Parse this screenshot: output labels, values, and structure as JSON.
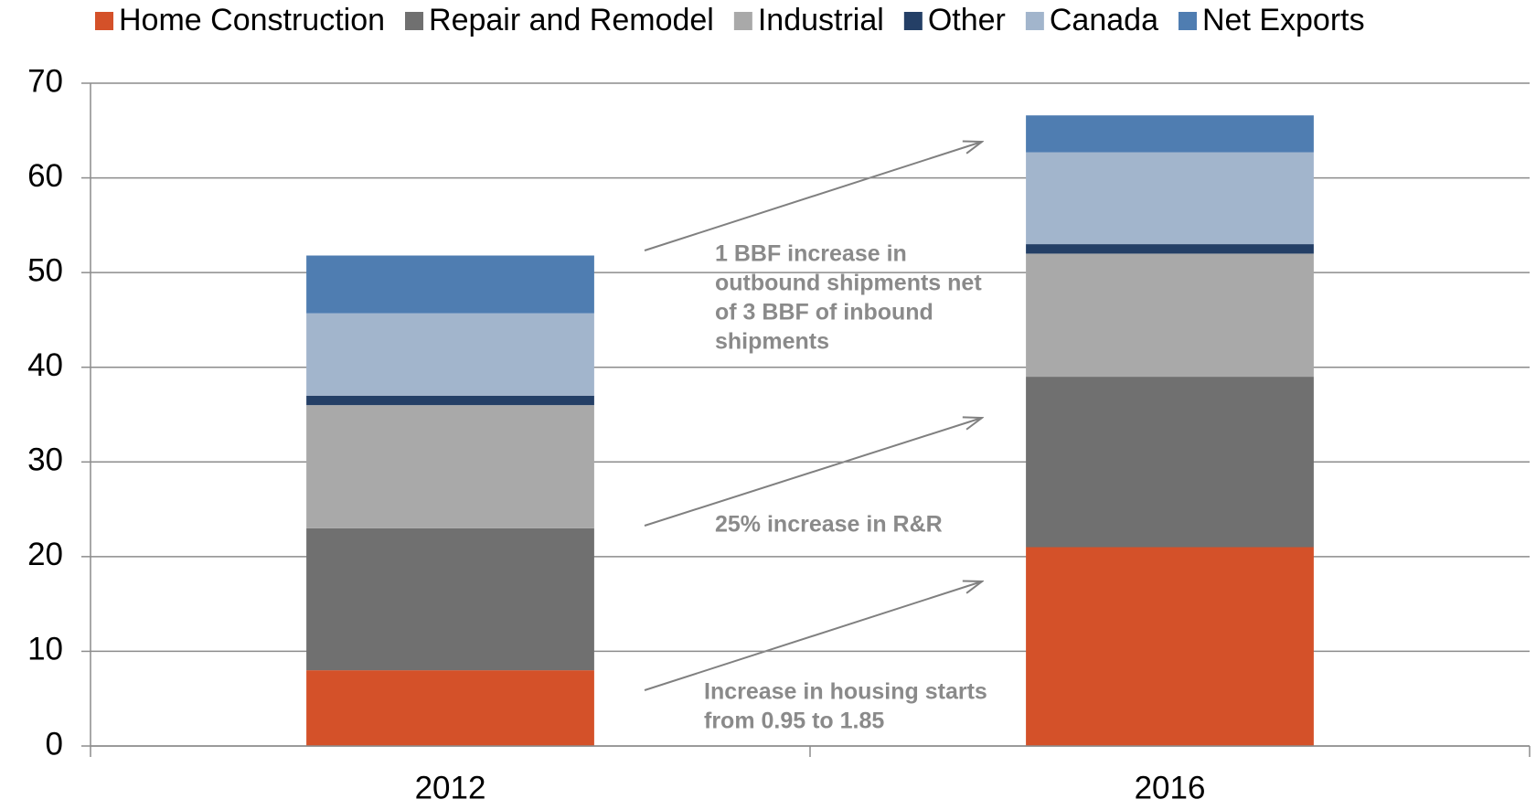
{
  "chart_data": {
    "type": "stacked_bar",
    "categories": [
      "2012",
      "2016"
    ],
    "series": [
      {
        "name": "Home Construction",
        "color": "#d45129",
        "values": [
          8,
          21
        ]
      },
      {
        "name": "Repair and Remodel",
        "color": "#707070",
        "values": [
          15,
          18
        ]
      },
      {
        "name": "Industrial",
        "color": "#a9a9a9",
        "values": [
          13,
          13
        ]
      },
      {
        "name": "Other",
        "color": "#243f66",
        "values": [
          1,
          1
        ]
      },
      {
        "name": "Canada",
        "color": "#a2b5cc",
        "values": [
          8.7,
          9.7
        ]
      },
      {
        "name": "Net Exports",
        "color": "#4f7db1",
        "values": [
          6.1,
          3.9
        ]
      }
    ],
    "ylim": [
      0,
      70
    ],
    "yticks": [
      0,
      10,
      20,
      30,
      40,
      50,
      60,
      70
    ],
    "grid": true,
    "legend": "top",
    "annotations": [
      {
        "lines": [
          "1 BBF increase in",
          "outbound shipments net",
          "of 3 BBF of inbound",
          "shipments"
        ]
      },
      {
        "lines": [
          "25% increase in R&R"
        ]
      },
      {
        "lines": [
          "Increase in housing starts",
          "from 0.95 to 1.85"
        ]
      }
    ]
  }
}
